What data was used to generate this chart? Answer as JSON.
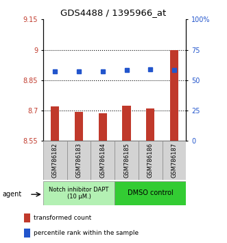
{
  "title": "GDS4488 / 1395966_at",
  "samples": [
    "GSM786182",
    "GSM786183",
    "GSM786184",
    "GSM786185",
    "GSM786186",
    "GSM786187"
  ],
  "bar_values": [
    8.72,
    8.695,
    8.685,
    8.725,
    8.71,
    9.0
  ],
  "bar_bottom": 8.55,
  "percentile_values": [
    8.895,
    8.895,
    8.895,
    8.9,
    8.905,
    8.9
  ],
  "bar_color": "#c0392b",
  "dot_color": "#2255cc",
  "ylim_left": [
    8.55,
    9.15
  ],
  "yticks_left": [
    8.55,
    8.7,
    8.85,
    9.0,
    9.15
  ],
  "ytick_labels_left": [
    "8.55",
    "8.7",
    "8.85",
    "9",
    "9.15"
  ],
  "yticks_right_pct": [
    0,
    25,
    50,
    75,
    100
  ],
  "ytick_labels_right": [
    "0",
    "25",
    "50",
    "75",
    "100%"
  ],
  "hlines": [
    9.0,
    8.85,
    8.7
  ],
  "group1_label": "Notch inhibitor DAPT\n(10 μM.)",
  "group2_label": "DMSO control",
  "group1_color": "#b3f0b3",
  "group2_color": "#33cc33",
  "group1_indices": [
    0,
    1,
    2
  ],
  "group2_indices": [
    3,
    4,
    5
  ],
  "agent_label": "agent",
  "legend_bar_label": "transformed count",
  "legend_dot_label": "percentile rank within the sample",
  "bar_width": 0.35,
  "ymin": 8.55,
  "ymax": 9.15,
  "dot_size": 4
}
